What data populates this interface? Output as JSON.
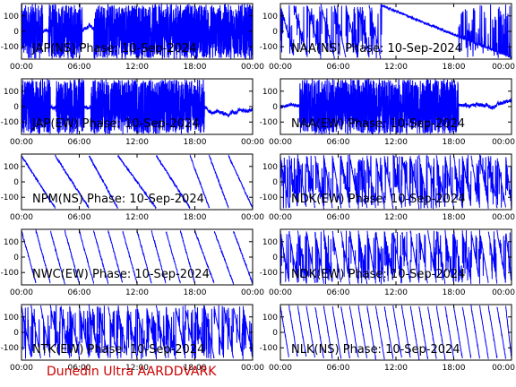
{
  "colors": {
    "trace": "#0000ff",
    "axes": "#000000",
    "footer": "#cc0000"
  },
  "footer": "Dunedin Ultra AARDDVARK",
  "chart_data": [
    {
      "type": "line",
      "title": "JAP(NS) Phase: 10-Sep-2024",
      "ylim": [
        -180,
        180
      ],
      "yticks": [
        "100",
        "0",
        "-100"
      ],
      "xticks": [
        "00:00",
        "06:00",
        "12:00",
        "18:00",
        "00:00"
      ],
      "pattern": "noise",
      "density": 0.95,
      "sparse_hours": [
        [
          2.2,
          2.8
        ],
        [
          6.3,
          7.5
        ]
      ]
    },
    {
      "type": "line",
      "title": "NAA(NS) Phase: 10-Sep-2024",
      "ylim": [
        -180,
        180
      ],
      "yticks": [
        "100",
        "0",
        "-100"
      ],
      "xticks": [
        "00:00",
        "06:00",
        "12:00",
        "18:00",
        "00:00"
      ],
      "pattern": "ramps",
      "ramp_hours": [
        0,
        1.4,
        2.8,
        4.2,
        5.6,
        6.8,
        8.0,
        9.2,
        10.4
      ],
      "sparse_hours": [
        [
          10.5,
          18.5
        ]
      ],
      "density": 0.85
    },
    {
      "type": "line",
      "title": "JAP(EW) Phase: 10-Sep-2024",
      "ylim": [
        -180,
        180
      ],
      "yticks": [
        "100",
        "0",
        "-100"
      ],
      "xticks": [
        "00:00",
        "06:00",
        "12:00",
        "18:00",
        "00:00"
      ],
      "pattern": "noise",
      "density": 0.9,
      "sparse_hours": [
        [
          3.0,
          3.6
        ],
        [
          6.5,
          7.2
        ],
        [
          19.0,
          24.0
        ]
      ]
    },
    {
      "type": "line",
      "title": "NAA(EW) Phase: 10-Sep-2024",
      "ylim": [
        -180,
        180
      ],
      "yticks": [
        "100",
        "0",
        "-100"
      ],
      "xticks": [
        "00:00",
        "06:00",
        "12:00",
        "18:00",
        "00:00"
      ],
      "pattern": "noise",
      "density": 0.85,
      "sparse_hours": [
        [
          0.0,
          2.0
        ],
        [
          18.5,
          24.0
        ]
      ]
    },
    {
      "type": "line",
      "title": "NPM(NS) Phase: 10-Sep-2024",
      "ylim": [
        -180,
        180
      ],
      "yticks": [
        "100",
        "0",
        "-100"
      ],
      "xticks": [
        "00:00",
        "06:00",
        "12:00",
        "18:00",
        "00:00"
      ],
      "pattern": "ramps",
      "ramp_hours": [
        0,
        3.5,
        7.0,
        10.0,
        14.0,
        17.5,
        19.5,
        21.5
      ],
      "density": 0.0
    },
    {
      "type": "line",
      "title": "NDK(EW) Phase: 10-Sep-2024",
      "ylim": [
        -180,
        180
      ],
      "yticks": [
        "100",
        "0",
        "-100"
      ],
      "xticks": [
        "00:00",
        "06:00",
        "12:00",
        "18:00",
        "00:00"
      ],
      "pattern": "ramps",
      "ramp_hours": [
        0,
        0.9,
        1.8,
        2.7,
        3.6,
        4.5,
        5.4,
        6.3,
        7.2,
        8.1,
        9.0,
        9.9,
        10.8,
        11.7,
        12.6,
        13.5,
        14.4,
        15.3,
        16.2,
        17.1,
        18.0,
        18.9,
        19.8,
        20.7,
        21.6,
        22.5,
        23.4
      ],
      "density": 0.6
    },
    {
      "type": "line",
      "title": "NWC(EW) Phase: 10-Sep-2024",
      "ylim": [
        -180,
        180
      ],
      "yticks": [
        "100",
        "0",
        "-100"
      ],
      "xticks": [
        "00:00",
        "06:00",
        "12:00",
        "18:00",
        "00:00"
      ],
      "pattern": "ramps",
      "ramp_hours": [
        0,
        1.5,
        3.0,
        4.5,
        6.0,
        7.5,
        9.0,
        10.5,
        12.0,
        13.5,
        15.0,
        16.5,
        18.0,
        20.0,
        22.0
      ],
      "density": 0.0
    },
    {
      "type": "line",
      "title": "NDK(EW) Phase: 10-Sep-2024",
      "ylim": [
        -180,
        180
      ],
      "yticks": [
        "100",
        "0",
        "-100"
      ],
      "xticks": [
        "00:00",
        "06:00",
        "12:00",
        "18:00",
        "00:00"
      ],
      "pattern": "ramps",
      "ramp_hours": [
        0,
        0.9,
        1.8,
        2.7,
        3.6,
        4.5,
        5.4,
        6.3,
        7.2,
        8.1,
        9.0,
        9.9,
        10.8,
        11.7,
        12.6,
        13.5,
        14.4,
        15.3,
        16.2,
        17.1,
        18.0,
        18.9,
        19.8,
        20.7,
        21.6,
        22.5,
        23.4
      ],
      "density": 0.6
    },
    {
      "type": "line",
      "title": "NTK(EW) Phase: 10-Sep-2024",
      "ylim": [
        -180,
        180
      ],
      "yticks": [
        "100",
        "0",
        "-100"
      ],
      "xticks": [
        "00:00",
        "06:00",
        "12:00",
        "18:00",
        "00:00"
      ],
      "pattern": "ramps",
      "ramp_hours": [
        0,
        1.0,
        2.0,
        3.0,
        4.0,
        5.0,
        6.0,
        7.0,
        8.0,
        9.0,
        10.0,
        11.0,
        12.0,
        13.0,
        14.0,
        15.0,
        16.0,
        17.0,
        18.0,
        19.0,
        20.0,
        21.0,
        22.0,
        23.0
      ],
      "density": 0.75
    },
    {
      "type": "line",
      "title": "NLK(NS) Phase: 10-Sep-2024",
      "ylim": [
        -180,
        180
      ],
      "yticks": [
        "100",
        "0",
        "-100"
      ],
      "xticks": [
        "00:00",
        "06:00",
        "12:00",
        "18:00",
        "00:00"
      ],
      "pattern": "ramps",
      "ramp_hours": [
        0,
        0.9,
        1.8,
        2.7,
        3.6,
        4.5,
        5.4,
        6.3,
        7.2,
        8.1,
        9.0,
        9.9,
        10.8,
        11.7,
        12.6,
        13.5,
        14.4,
        15.3,
        16.2,
        17.1,
        18.0,
        18.9,
        19.8,
        20.7,
        21.6,
        22.5,
        23.4
      ],
      "density": 0.0
    }
  ]
}
